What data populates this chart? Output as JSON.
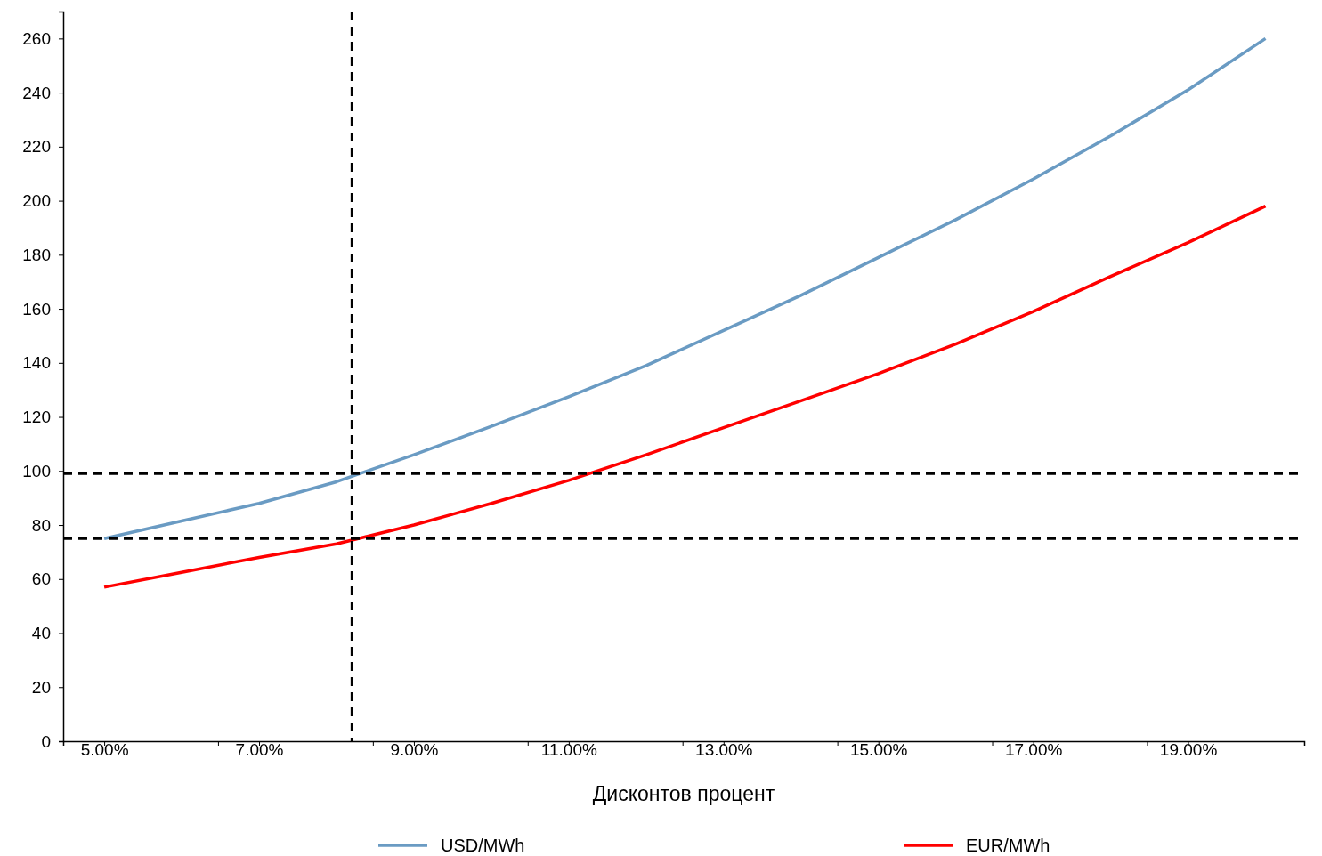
{
  "chart_data": {
    "type": "line",
    "xlabel": "Дисконтов процент",
    "x": [
      5,
      6,
      7,
      8,
      9,
      10,
      11,
      12,
      13,
      14,
      15,
      16,
      17,
      18,
      19,
      20
    ],
    "xlim": [
      4.47,
      20.5
    ],
    "xticks": [
      {
        "value": 4.47,
        "label": null
      },
      {
        "value": 5,
        "label": "5.00%"
      },
      {
        "value": 6.47,
        "label": null
      },
      {
        "value": 7,
        "label": "7.00%"
      },
      {
        "value": 8.47,
        "label": null
      },
      {
        "value": 9,
        "label": "9.00%"
      },
      {
        "value": 10.47,
        "label": null
      },
      {
        "value": 11,
        "label": "11.00%"
      },
      {
        "value": 12.47,
        "label": null
      },
      {
        "value": 13,
        "label": "13.00%"
      },
      {
        "value": 14.47,
        "label": null
      },
      {
        "value": 15,
        "label": "15.00%"
      },
      {
        "value": 16.47,
        "label": null
      },
      {
        "value": 17,
        "label": "17.00%"
      },
      {
        "value": 18.47,
        "label": null
      },
      {
        "value": 19,
        "label": "19.00%"
      }
    ],
    "ylim": [
      0,
      270
    ],
    "yticks": [
      0,
      20,
      40,
      60,
      80,
      100,
      120,
      140,
      160,
      180,
      200,
      220,
      240,
      260
    ],
    "series": [
      {
        "name": "USD/MWh",
        "color": "#6a9bc3",
        "values": [
          75,
          81.5,
          88,
          96,
          106,
          116.5,
          127.5,
          139,
          152,
          165,
          179,
          193,
          208,
          224,
          241,
          260
        ]
      },
      {
        "name": "EUR/MWh",
        "color": "#ff0000",
        "values": [
          57,
          62.5,
          68,
          73,
          80,
          88,
          96.5,
          106,
          116,
          126,
          136,
          147,
          159,
          172,
          184.5,
          198
        ]
      }
    ],
    "ref_lines": [
      {
        "axis": "x",
        "value": 8.2,
        "color": "#000000",
        "line_style": "dashed"
      },
      {
        "axis": "y",
        "value": 99,
        "color": "#000000",
        "line_style": "dashed"
      },
      {
        "axis": "y",
        "value": 75,
        "color": "#000000",
        "line_style": "dashed"
      }
    ],
    "grid": false,
    "legend": "bottom",
    "marker": "none",
    "line_style": "solid"
  }
}
